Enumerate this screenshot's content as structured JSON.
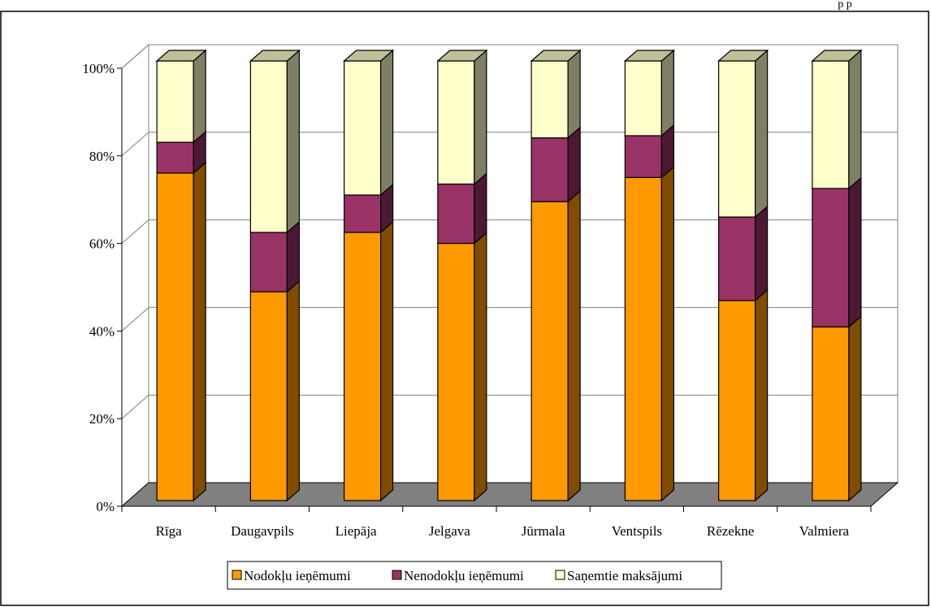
{
  "chart_data": {
    "type": "bar",
    "stacked": "percent",
    "three_d": true,
    "categories": [
      "Rīga",
      "Daugavpils",
      "Liepāja",
      "Jelgava",
      "Jūrmala",
      "Ventspils",
      "Rēzekne",
      "Valmiera"
    ],
    "series": [
      {
        "name": "Nodokļu ieņēmumi",
        "color": "#FF9900",
        "side_color": "#7F4C00",
        "top_color": "#FFCC80",
        "values": [
          74.5,
          47.5,
          61,
          58.5,
          68,
          73.5,
          45.5,
          39.5
        ]
      },
      {
        "name": "Nenodokļu ieņēmumi",
        "color": "#993366",
        "side_color": "#4C1933",
        "top_color": "#CC99B2",
        "values": [
          7,
          13.5,
          8.5,
          13.5,
          14.5,
          9.5,
          19,
          31.5
        ]
      },
      {
        "name": "Saņemtie maksājumi",
        "color": "#FFFFCC",
        "side_color": "#7F7F66",
        "top_color": "#BFBF99",
        "values": [
          18.5,
          39,
          30.5,
          28,
          17.5,
          17,
          35.5,
          29
        ]
      }
    ],
    "y_ticks": [
      "0%",
      "20%",
      "40%",
      "60%",
      "80%",
      "100%"
    ],
    "ylim": [
      0,
      100
    ],
    "grid": true,
    "wall_color": "#FFFFFF",
    "floor_color": "#808080",
    "legend_position": "bottom"
  },
  "top_note": "p p"
}
